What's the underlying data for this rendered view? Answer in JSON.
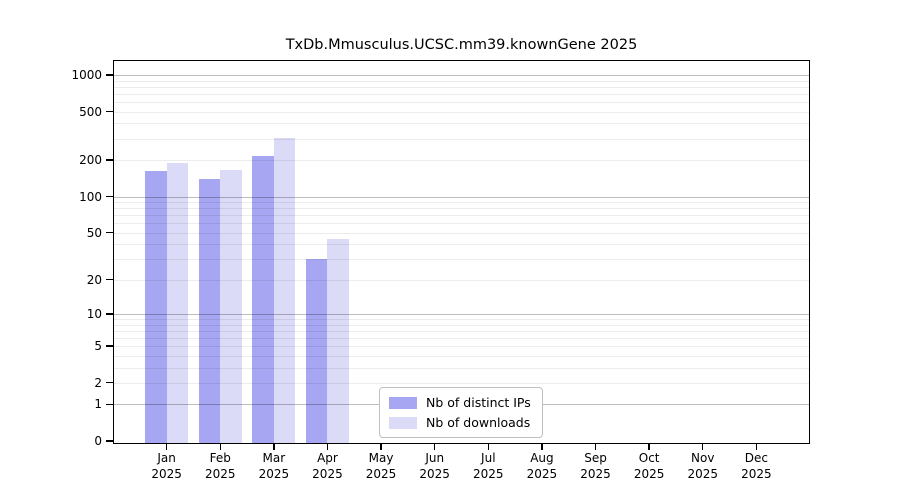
{
  "title": "TxDb.Mmusculus.UCSC.mm39.knownGene 2025",
  "chart_data": {
    "type": "bar",
    "title": "TxDb.Mmusculus.UCSC.mm39.knownGene 2025",
    "xlabel": "",
    "ylabel": "",
    "x_categories": [
      "Jan",
      "Feb",
      "Mar",
      "Apr",
      "May",
      "Jun",
      "Jul",
      "Aug",
      "Sep",
      "Oct",
      "Nov",
      "Dec"
    ],
    "x_year_label": "2025",
    "series": [
      {
        "name": "Nb of distinct IPs",
        "color": "#a6a6f2",
        "values": [
          163,
          140,
          215,
          30,
          null,
          null,
          null,
          null,
          null,
          null,
          null,
          null
        ]
      },
      {
        "name": "Nb of downloads",
        "color": "#dbdbf8",
        "values": [
          190,
          165,
          305,
          44,
          null,
          null,
          null,
          null,
          null,
          null,
          null,
          null
        ]
      }
    ],
    "y_scale": "log1p",
    "y_tick_values": [
      1000,
      500,
      200,
      100,
      50,
      20,
      10,
      5,
      2,
      1,
      0
    ],
    "y_major_gridlines": [
      1,
      10,
      100,
      1000
    ],
    "ylim": [
      0,
      1330
    ],
    "grid": true,
    "legend_position": "inside-bottom-center"
  },
  "colors": {
    "background": "#ffffff",
    "bar_distinct_ips": "#a6a6f2",
    "bar_downloads": "#dbdbf8",
    "grid_major": "#bdbdbd",
    "grid_minor": "#ededed",
    "spine": "#000000",
    "legend_border": "#c0c0c0",
    "text": "#000000"
  }
}
